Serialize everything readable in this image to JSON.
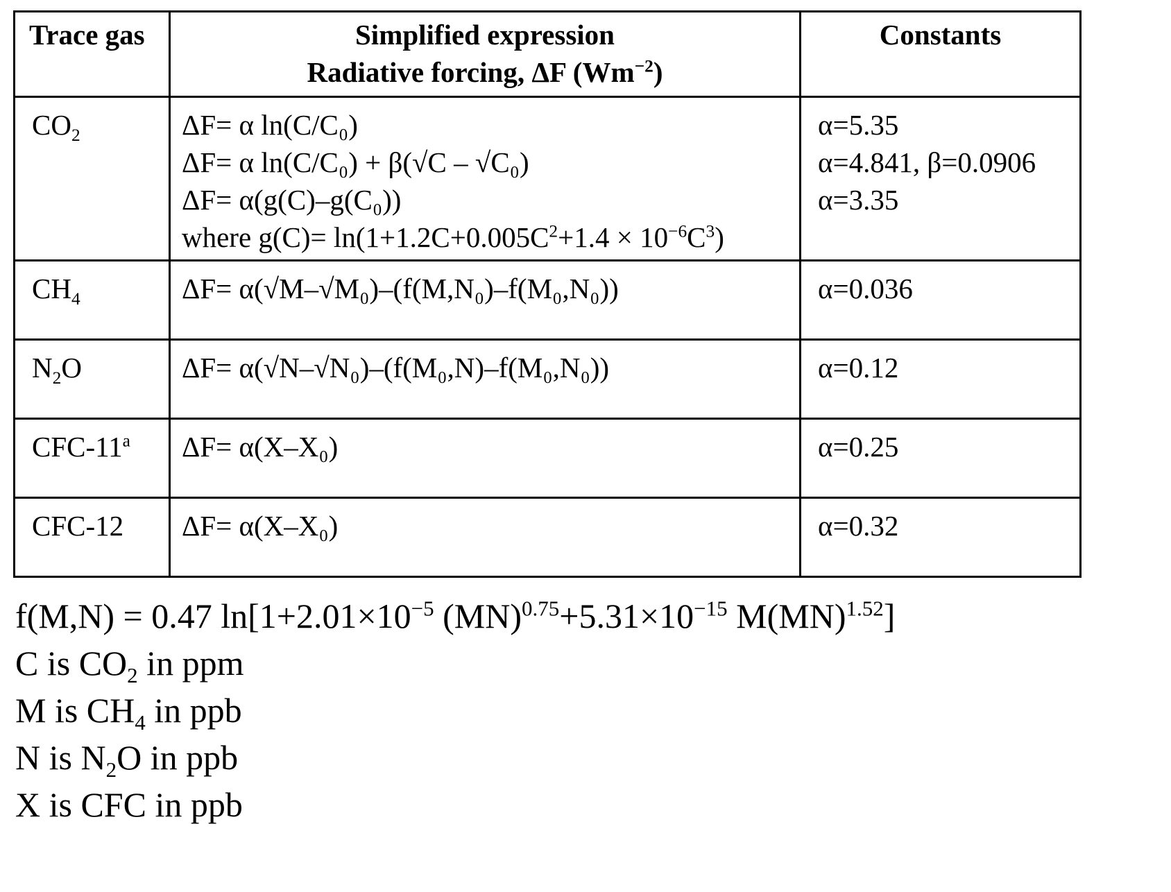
{
  "table": {
    "headers": {
      "gas": "Trace gas",
      "expr_line1": "Simplified expression",
      "expr_line2": "Radiative forcing, ΔF (Wm",
      "expr_line2_exp": "−2",
      "expr_line2_end": ")",
      "constants": "Constants"
    },
    "co2": {
      "gas": "CO",
      "gas_sub": "2",
      "expr1": "ΔF= α ln(C/C₀)",
      "expr2": "ΔF= α ln(C/C₀) + β(√C – √C₀)",
      "expr3": "ΔF= α(g(C)–g(C₀))",
      "expr4_a": "where g(C)= ln(1+1.2C+0.005C",
      "expr4_sup1": "2",
      "expr4_b": "+1.4 × 10",
      "expr4_sup2": "−6",
      "expr4_c": "C",
      "expr4_sup3": "3",
      "expr4_d": ")",
      "const1": "α=5.35",
      "const2": "α=4.841, β=0.0906",
      "const3": "α=3.35"
    },
    "ch4": {
      "gas": "CH",
      "gas_sub": "4",
      "expr": "ΔF= α(√M–√M₀)–(f(M,N₀)–f(M₀,N₀))",
      "const": "α=0.036"
    },
    "n2o": {
      "gas_a": "N",
      "gas_sub": "2",
      "gas_b": "O",
      "expr": "ΔF= α(√N–√N₀)–(f(M₀,N)–f(M₀,N₀))",
      "const": "α=0.12"
    },
    "cfc11": {
      "gas": "CFC-11",
      "gas_sup": "a",
      "expr": "ΔF= α(X–X₀)",
      "const": "α=0.25"
    },
    "cfc12": {
      "gas": "CFC-12",
      "expr": "ΔF= α(X–X₀)",
      "const": "α=0.32"
    }
  },
  "notes": {
    "f_a": "f(M,N) = 0.47 ln[1+2.01×10",
    "f_sup1": "−5",
    "f_b": " (MN)",
    "f_sup2": "0.75",
    "f_c": "+5.31×10",
    "f_sup3": "−15",
    "f_d": " M(MN)",
    "f_sup4": "1.52",
    "f_e": "]",
    "c_a": "C is CO",
    "c_sub": "2",
    "c_b": " in ppm",
    "m_a": "M is CH",
    "m_sub": "4",
    "m_b": " in ppb",
    "n_a": "N is N",
    "n_sub": "2",
    "n_b": "O in ppb",
    "x": "X is CFC in ppb"
  }
}
